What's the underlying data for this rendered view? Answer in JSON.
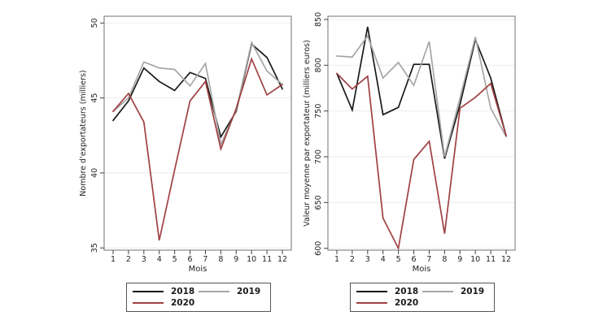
{
  "page": {
    "background": "#ffffff"
  },
  "colors": {
    "series_2018": "#1a1a1a",
    "series_2019": "#a6a6a6",
    "series_2020": "#a04043",
    "plot_border": "#8a8a8a",
    "gridline": "#ebebeb",
    "tick": "#404040",
    "axis_text": "#1f1f1f",
    "legend_border": "#555555"
  },
  "chart_data": [
    {
      "type": "line",
      "title": "",
      "xlabel": "Mois",
      "ylabel": "Nombre d'exportateurs (milliers)",
      "x": [
        1,
        2,
        3,
        4,
        5,
        6,
        7,
        8,
        9,
        10,
        11,
        12
      ],
      "yticks": [
        35,
        40,
        45,
        50
      ],
      "ylim": [
        34.85,
        50.45
      ],
      "grid": true,
      "legend_position": "bottom",
      "series": [
        {
          "name": "2018",
          "color_key": "series_2018",
          "values": [
            43.5,
            44.8,
            47.0,
            46.1,
            45.5,
            46.7,
            46.3,
            42.4,
            44.1,
            48.6,
            47.7,
            45.6
          ]
        },
        {
          "name": "2019",
          "color_key": "series_2019",
          "values": [
            44.1,
            45.0,
            47.4,
            47.0,
            46.9,
            45.8,
            47.3,
            41.9,
            44.2,
            48.7,
            46.8,
            45.9
          ]
        },
        {
          "name": "2020",
          "color_key": "series_2020",
          "values": [
            44.1,
            45.3,
            43.4,
            35.5,
            40.2,
            44.8,
            46.1,
            41.6,
            44.3,
            47.6,
            45.2,
            45.9
          ]
        }
      ]
    },
    {
      "type": "line",
      "title": "",
      "xlabel": "Mois",
      "ylabel": "Valeur moyenne par exportateur (milliers euros)",
      "x": [
        1,
        2,
        3,
        4,
        5,
        6,
        7,
        8,
        9,
        10,
        11,
        12
      ],
      "yticks": [
        600,
        650,
        700,
        750,
        800,
        850
      ],
      "ylim": [
        598,
        853.5
      ],
      "grid": true,
      "legend_position": "bottom",
      "series": [
        {
          "name": "2018",
          "color_key": "series_2018",
          "values": [
            791,
            751,
            842,
            746,
            754,
            801,
            801,
            698,
            757,
            828,
            786,
            723
          ]
        },
        {
          "name": "2019",
          "color_key": "series_2019",
          "values": [
            810,
            809,
            832,
            786,
            803,
            778,
            826,
            700,
            764,
            831,
            753,
            722
          ]
        },
        {
          "name": "2020",
          "color_key": "series_2020",
          "values": [
            791,
            774,
            788,
            633,
            600,
            697,
            717,
            616,
            753,
            765,
            780,
            723
          ]
        }
      ]
    }
  ]
}
